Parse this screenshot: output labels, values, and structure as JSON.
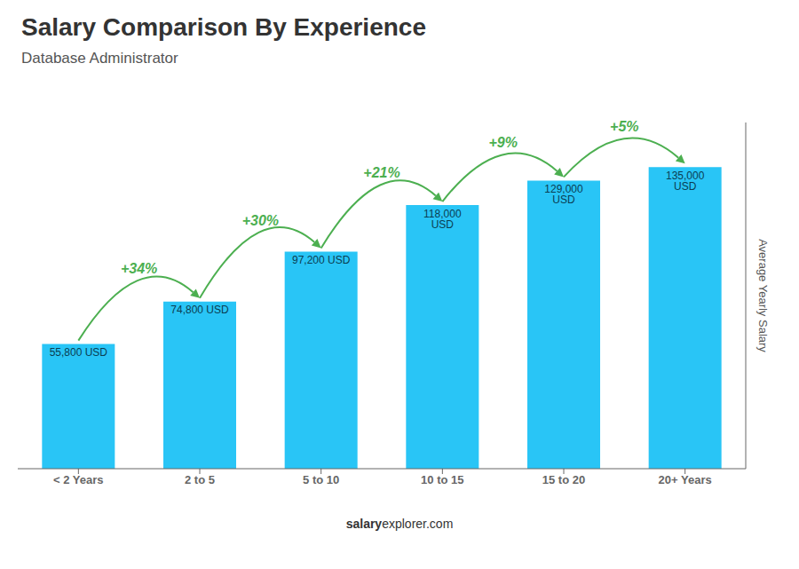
{
  "chart_data": {
    "type": "bar",
    "title": "Salary Comparison By Experience",
    "subtitle": "Database Administrator",
    "ylabel": "Average Yearly Salary",
    "categories": [
      "< 2 Years",
      "2 to 5",
      "5 to 10",
      "10 to 15",
      "15 to 20",
      "20+ Years"
    ],
    "values": [
      55800,
      74800,
      97200,
      118000,
      129000,
      135000
    ],
    "value_labels": [
      "55,800 USD",
      "74,800 USD",
      "97,200 USD",
      "118,000 USD",
      "129,000 USD",
      "135,000 USD"
    ],
    "data_labels": true,
    "color": "#29C5F6",
    "ylim": [
      0,
      155000
    ],
    "tick_labels": "x",
    "annotations": [
      {
        "text": "+34%",
        "from": "< 2 Years",
        "to": "2 to 5",
        "color": "#4caf50"
      },
      {
        "text": "+30%",
        "from": "2 to 5",
        "to": "5 to 10",
        "color": "#4caf50"
      },
      {
        "text": "+21%",
        "from": "5 to 10",
        "to": "10 to 15",
        "color": "#4caf50"
      },
      {
        "text": "+9%",
        "from": "10 to 15",
        "to": "15 to 20",
        "color": "#4caf50"
      },
      {
        "text": "+5%",
        "from": "15 to 20",
        "to": "20+ Years",
        "color": "#4caf50"
      }
    ],
    "watermark": [
      "salary",
      "explorer.com"
    ]
  }
}
